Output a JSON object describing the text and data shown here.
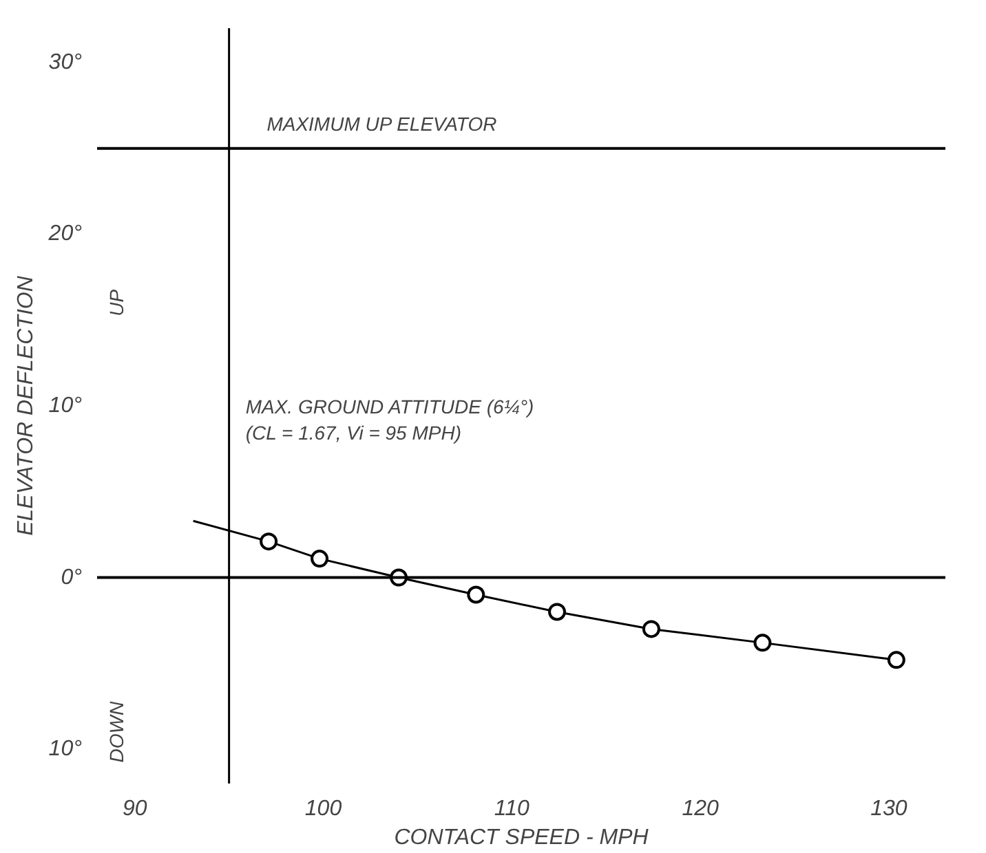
{
  "chart_data": {
    "type": "scatter",
    "xlabel": "CONTACT SPEED - MPH",
    "ylabel": "ELEVATOR DEFLECTION",
    "xlim": [
      88,
      133
    ],
    "ylim": [
      -12,
      32
    ],
    "xticks": [
      90,
      100,
      110,
      120,
      130
    ],
    "yticks": [
      {
        "value": -10,
        "label": "10°"
      },
      {
        "value": 0,
        "label": "0°"
      },
      {
        "value": 10,
        "label": "10°"
      },
      {
        "value": 20,
        "label": "20°"
      },
      {
        "value": 30,
        "label": "30°"
      }
    ],
    "grid": false,
    "marker": "circle",
    "series": [
      {
        "type": "line",
        "color": "#000000",
        "x": [
          93.1,
          97.1,
          99.8,
          104,
          108.1,
          112.4,
          117.4,
          123.3,
          130.4
        ],
        "values": [
          3.3,
          2.1,
          1.1,
          0,
          -1,
          -2,
          -3,
          -3.8,
          -4.8
        ],
        "marker": "none"
      },
      {
        "color": "#000000",
        "x": [
          97.1,
          99.8,
          104,
          108.1,
          112.4,
          117.4,
          123.3,
          130.4
        ],
        "values": [
          2.1,
          1.1,
          0,
          -1,
          -2,
          -3,
          -3.8,
          -4.8
        ]
      }
    ],
    "ref_lines": [
      {
        "axis": "y",
        "value": 0,
        "color": "#000000"
      },
      {
        "axis": "y",
        "value": 25,
        "label": "MAXIMUM UP ELEVATOR",
        "color": "#000000"
      },
      {
        "axis": "x",
        "value": 95,
        "label": "MAX. GROUND ATTITUDE (6¼°)\n(CL = 1.67, Vi = 95 MPH)",
        "color": "#000000"
      }
    ],
    "annotations": [
      "UP",
      "DOWN"
    ]
  }
}
